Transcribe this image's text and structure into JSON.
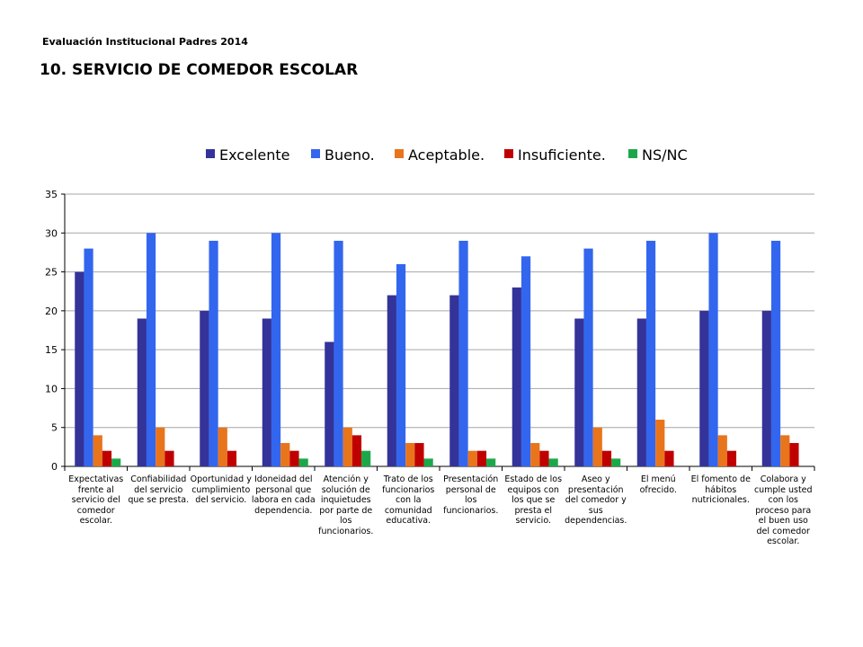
{
  "header": {
    "subtitle": "Evaluación  Institucional Padres 2014",
    "title": "10. SERVICIO DE COMEDOR ESCOLAR"
  },
  "chart_data": {
    "type": "bar",
    "categories": [
      "Expectativas frente al servicio del comedor escolar.",
      "Confiabilidad del servicio que se presta.",
      "Oportunidad y cumplimiento del servicio.",
      "Idoneidad del personal que labora en cada dependencia.",
      "Atención y solución de inquietudes por parte de los funcionarios.",
      "Trato de los funcionarios con la comunidad educativa.",
      "Presentación personal de los funcionarios.",
      "Estado de los equipos con los que se presta el servicio.",
      "Aseo y presentación del comedor y sus dependencias.",
      "El menú ofrecido.",
      "El fomento de hábitos nutricionales.",
      "Colabora y cumple usted con los proceso para el buen uso del comedor escolar."
    ],
    "series": [
      {
        "name": "Excelente",
        "color": "#333399",
        "values": [
          25,
          19,
          20,
          19,
          16,
          22,
          22,
          23,
          19,
          19,
          20,
          20
        ]
      },
      {
        "name": "Bueno.",
        "color": "#3366ee",
        "values": [
          28,
          30,
          29,
          30,
          29,
          26,
          29,
          27,
          28,
          29,
          30,
          29
        ]
      },
      {
        "name": "Aceptable.",
        "color": "#e8741c",
        "values": [
          4,
          5,
          5,
          3,
          5,
          3,
          2,
          3,
          5,
          6,
          4,
          4
        ]
      },
      {
        "name": "Insuficiente.",
        "color": "#c00000",
        "values": [
          2,
          2,
          2,
          2,
          4,
          3,
          2,
          2,
          2,
          2,
          2,
          3
        ]
      },
      {
        "name": "NS/NC",
        "color": "#1ca84a",
        "values": [
          1,
          0,
          0,
          1,
          2,
          1,
          1,
          1,
          1,
          0,
          0,
          0
        ]
      }
    ],
    "ylim": [
      0,
      35
    ],
    "yticks": [
      0,
      5,
      10,
      15,
      20,
      25,
      30,
      35
    ],
    "grid": true,
    "legend_position": "top"
  }
}
